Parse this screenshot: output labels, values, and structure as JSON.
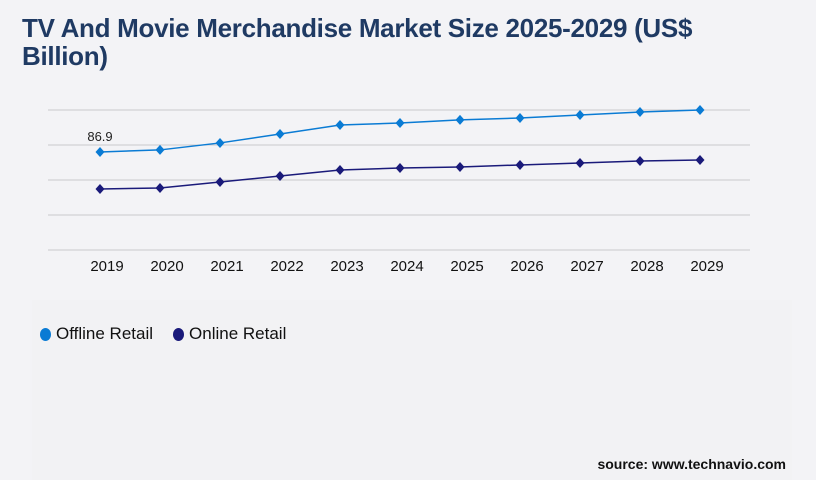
{
  "title": "TV And Movie Merchandise Market Size 2025-2029 (US$ Billion)",
  "source": "source: www.technavio.com",
  "chart_data": {
    "type": "line",
    "title": "TV And Movie Merchandise Market Size 2025-2029 (US$ Billion)",
    "x": [
      "2019",
      "2020",
      "2021",
      "2022",
      "2023",
      "2024",
      "2025",
      "2026",
      "2027",
      "2028",
      "2029"
    ],
    "ylim": [
      0,
      124.1
    ],
    "grid": true,
    "legend_position": "bottom-left",
    "series": [
      {
        "name": "Offline Retail",
        "color": "#0a7bd4",
        "values": [
          86.9,
          88.7,
          94.9,
          102.8,
          110.8,
          112.6,
          115.3,
          117.0,
          119.7,
          122.3,
          124.1
        ]
      },
      {
        "name": "Online Retail",
        "color": "#1a1a7a",
        "values": [
          54.1,
          55.0,
          60.3,
          65.6,
          70.9,
          72.7,
          73.6,
          75.4,
          77.1,
          78.9,
          79.8
        ]
      }
    ],
    "annotations": [
      {
        "series": 0,
        "index": 0,
        "text": "86.9"
      }
    ]
  }
}
